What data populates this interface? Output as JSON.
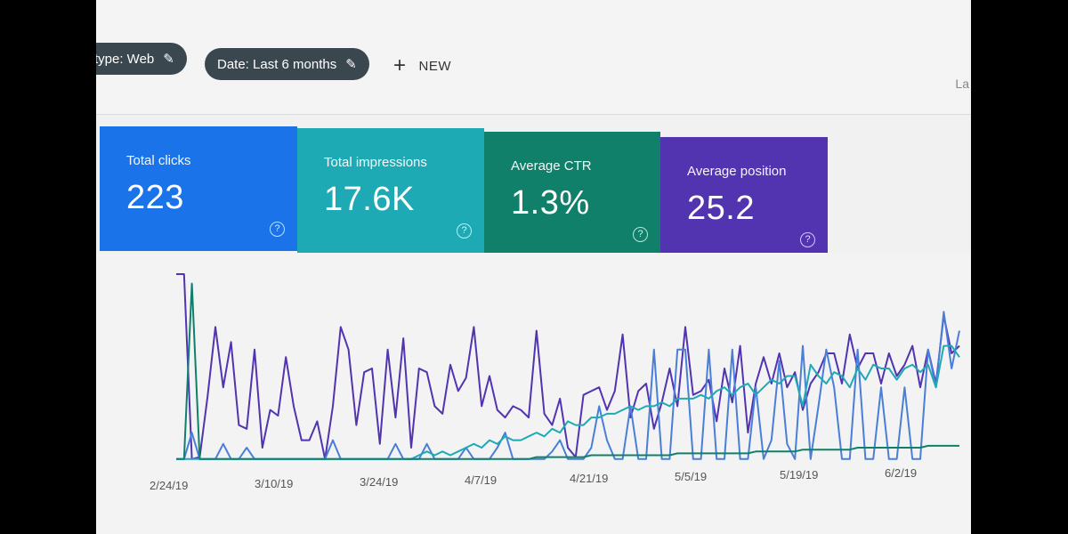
{
  "filters": {
    "type_chip": "type: Web",
    "date_chip": "Date: Last 6 months",
    "new_label": "NEW",
    "edge_text": "La"
  },
  "cards": [
    {
      "label": "Total clicks",
      "value": "223",
      "color": "#1a73e8"
    },
    {
      "label": "Total impressions",
      "value": "17.6K",
      "color": "#1eaab4"
    },
    {
      "label": "Average CTR",
      "value": "1.3%",
      "color": "#10806a"
    },
    {
      "label": "Average position",
      "value": "25.2",
      "color": "#5233b0"
    }
  ],
  "chart_data": {
    "type": "line",
    "x_tick_labels": [
      "2/24/19",
      "3/10/19",
      "3/24/19",
      "4/7/19",
      "4/21/19",
      "5/5/19",
      "5/19/19",
      "6/2/19"
    ],
    "series": [
      {
        "color": "#5233b0",
        "values": [
          100,
          100,
          2,
          3,
          35,
          72,
          40,
          64,
          20,
          18,
          60,
          8,
          28,
          25,
          56,
          30,
          12,
          12,
          22,
          2,
          30,
          72,
          60,
          20,
          48,
          50,
          10,
          60,
          24,
          66,
          8,
          50,
          48,
          30,
          26,
          52,
          38,
          45,
          72,
          30,
          46,
          28,
          24,
          30,
          28,
          24,
          70,
          26,
          20,
          34,
          8,
          3,
          36,
          38,
          40,
          28,
          38,
          68,
          24,
          38,
          42,
          18,
          32,
          50,
          30,
          72,
          36,
          38,
          44,
          22,
          50,
          32,
          62,
          16,
          42,
          56,
          42,
          58,
          40,
          48,
          28,
          42,
          48,
          58,
          58,
          42,
          68,
          50,
          58,
          58,
          42,
          58,
          46,
          52,
          62,
          40,
          60,
          42,
          78,
          58,
          62
        ]
      },
      {
        "color": "#4a7fd8",
        "values": [
          2,
          2,
          16,
          2,
          2,
          2,
          10,
          2,
          2,
          8,
          2,
          2,
          2,
          2,
          2,
          2,
          2,
          2,
          2,
          2,
          12,
          2,
          2,
          2,
          2,
          2,
          2,
          2,
          10,
          2,
          2,
          2,
          10,
          2,
          2,
          2,
          2,
          8,
          2,
          2,
          2,
          8,
          16,
          2,
          2,
          2,
          2,
          2,
          6,
          12,
          2,
          2,
          2,
          8,
          30,
          12,
          2,
          2,
          30,
          2,
          2,
          60,
          2,
          2,
          60,
          60,
          2,
          2,
          60,
          2,
          2,
          60,
          2,
          2,
          40,
          2,
          12,
          54,
          10,
          2,
          62,
          2,
          30,
          60,
          40,
          2,
          2,
          60,
          2,
          2,
          40,
          2,
          2,
          40,
          2,
          2,
          60,
          40,
          80,
          50,
          70
        ]
      },
      {
        "color": "#1eaab4",
        "values": [
          2,
          2,
          2,
          2,
          2,
          2,
          2,
          2,
          2,
          2,
          2,
          2,
          2,
          2,
          2,
          2,
          2,
          2,
          2,
          2,
          2,
          2,
          2,
          2,
          2,
          2,
          2,
          2,
          2,
          2,
          2,
          4,
          6,
          4,
          6,
          4,
          6,
          8,
          10,
          8,
          12,
          10,
          14,
          12,
          12,
          14,
          16,
          14,
          18,
          16,
          22,
          20,
          20,
          24,
          24,
          26,
          26,
          28,
          30,
          28,
          30,
          30,
          32,
          30,
          34,
          34,
          34,
          36,
          34,
          38,
          40,
          36,
          40,
          42,
          36,
          40,
          44,
          42,
          46,
          46,
          30,
          52,
          46,
          42,
          48,
          46,
          40,
          50,
          44,
          52,
          50,
          50,
          44,
          50,
          52,
          48,
          52,
          40,
          62,
          62,
          56
        ]
      },
      {
        "color": "#10806a",
        "values": [
          2,
          2,
          95,
          2,
          2,
          2,
          2,
          2,
          2,
          2,
          2,
          2,
          2,
          2,
          2,
          2,
          2,
          2,
          2,
          2,
          2,
          2,
          2,
          2,
          2,
          2,
          2,
          2,
          2,
          2,
          2,
          2,
          2,
          2,
          2,
          2,
          2,
          2,
          2,
          2,
          2,
          2,
          2,
          2,
          2,
          2,
          3,
          3,
          3,
          3,
          3,
          3,
          3,
          4,
          4,
          4,
          4,
          4,
          4,
          4,
          4,
          4,
          4,
          4,
          5,
          5,
          5,
          5,
          5,
          5,
          5,
          5,
          5,
          5,
          6,
          6,
          6,
          6,
          6,
          6,
          7,
          7,
          7,
          7,
          7,
          7,
          7,
          8,
          8,
          8,
          8,
          8,
          8,
          8,
          8,
          8,
          9,
          9,
          9,
          9,
          9
        ]
      }
    ]
  },
  "colors": {
    "screen_bg": "#f1f1f1",
    "chip_bg": "#3a474f"
  }
}
